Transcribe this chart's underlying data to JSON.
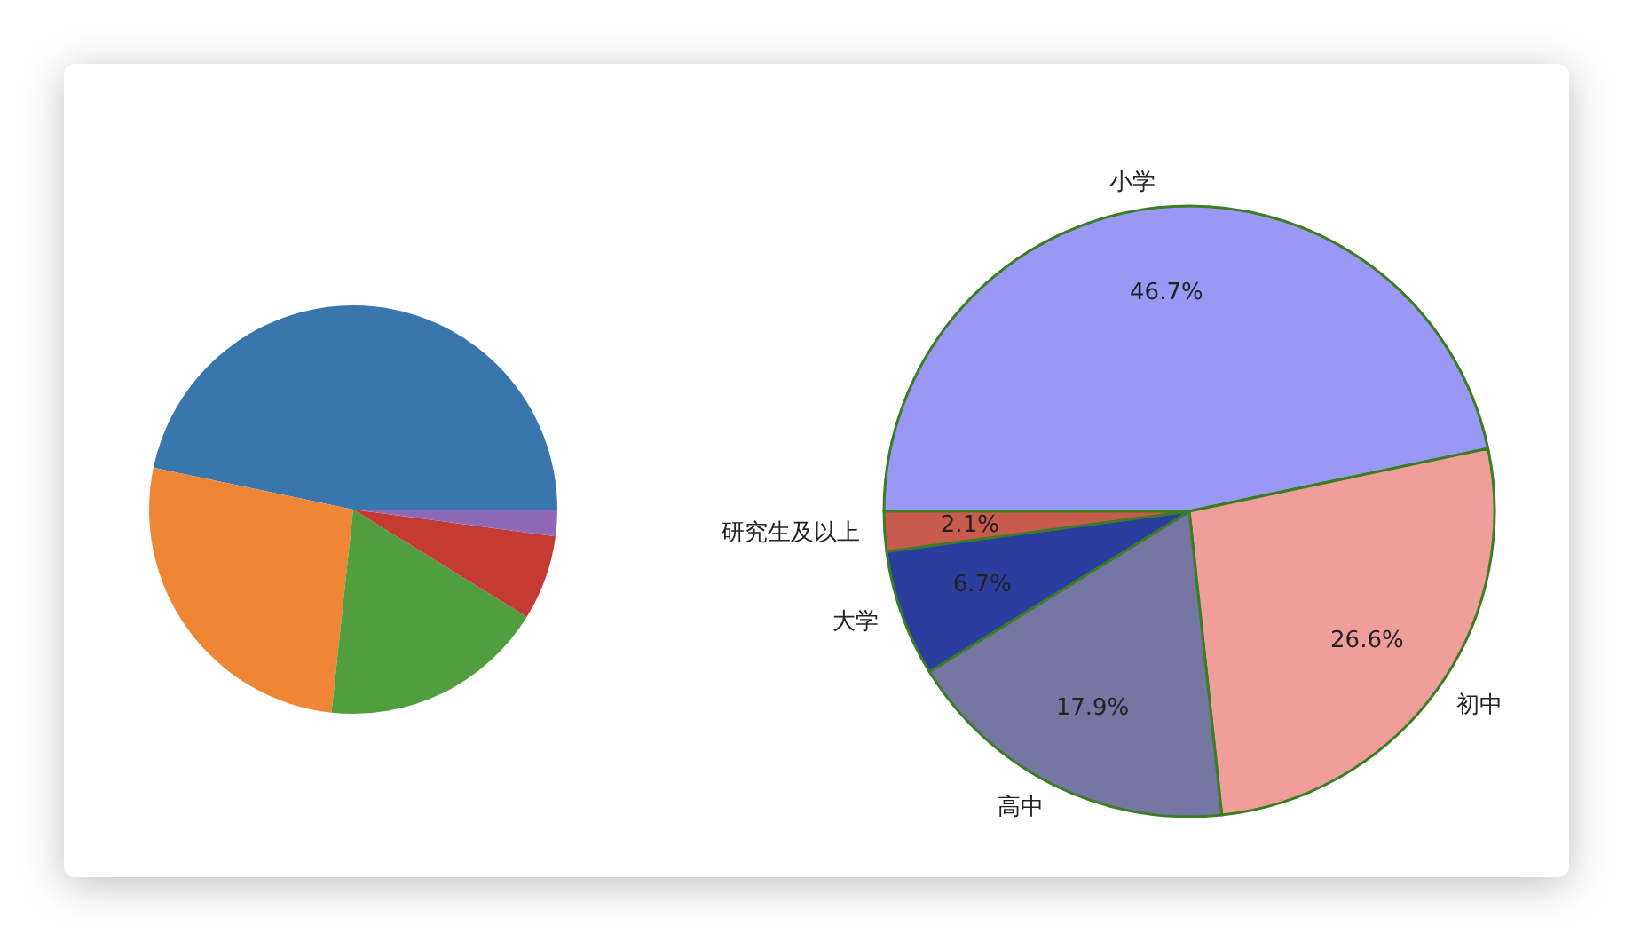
{
  "chart_data": [
    {
      "type": "pie",
      "categories": [
        null,
        null,
        null,
        null,
        null
      ],
      "values": [
        46.7,
        26.6,
        17.9,
        6.7,
        2.1
      ],
      "colors": [
        "#3a76ae",
        "#ef8636",
        "#519e3e",
        "#c53a32",
        "#8d69b8"
      ]
    },
    {
      "type": "pie",
      "categories": [
        "小学",
        "初中",
        "高中",
        "大学",
        "研究生及以上"
      ],
      "values": [
        46.7,
        26.6,
        17.9,
        6.7,
        2.1
      ],
      "colors": [
        "#9999f5",
        "#f09e9a",
        "#7676a3",
        "#2b3ea0",
        "#c85a4e"
      ],
      "value_labels": [
        "46.7%",
        "26.6%",
        "17.9%",
        "6.7%",
        "2.1%"
      ]
    }
  ]
}
